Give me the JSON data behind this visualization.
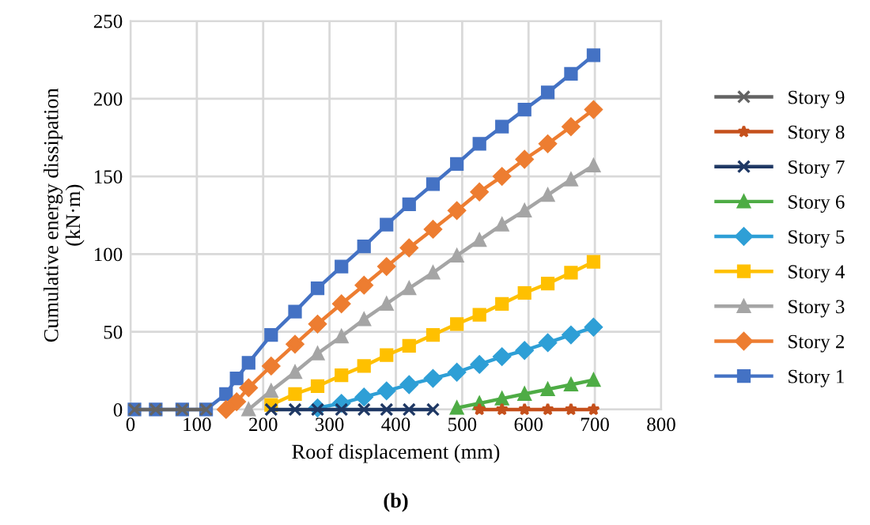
{
  "chart_data": {
    "type": "line",
    "xlabel": "Roof displacement (mm)",
    "ylabel": "Cumulative energy dissipation\n(kN·m)",
    "annotations": [
      "(b)"
    ],
    "x": [
      6,
      38,
      78,
      114,
      144,
      160,
      178,
      212,
      248,
      282,
      318,
      352,
      386,
      420,
      456,
      492,
      526,
      560,
      594,
      629,
      664,
      698
    ],
    "xlim": [
      0,
      800
    ],
    "xticks": [
      0,
      100,
      200,
      300,
      400,
      500,
      600,
      700,
      800
    ],
    "ylim": [
      0,
      250
    ],
    "yticks": [
      0,
      50,
      100,
      150,
      200,
      250
    ],
    "grid": true,
    "legend": "right",
    "series": [
      {
        "name": "Story 9",
        "color": "#636363",
        "marker": "cross",
        "values": [
          0,
          0,
          0,
          0,
          null,
          null,
          null,
          null,
          null,
          null,
          null,
          null,
          null,
          null,
          null,
          null,
          null,
          null,
          null,
          null,
          null,
          null
        ]
      },
      {
        "name": "Story 8",
        "color": "#c5501c",
        "marker": "star",
        "values": [
          null,
          null,
          null,
          null,
          null,
          null,
          null,
          null,
          null,
          null,
          null,
          null,
          null,
          null,
          null,
          null,
          0,
          0,
          0,
          0,
          0,
          0
        ]
      },
      {
        "name": "Story 7",
        "color": "#1f3864",
        "marker": "cross",
        "values": [
          null,
          null,
          null,
          null,
          null,
          null,
          null,
          0,
          0,
          0,
          0,
          0,
          0,
          0,
          0,
          null,
          null,
          null,
          null,
          null,
          null,
          null
        ]
      },
      {
        "name": "Story 6",
        "color": "#4eac45",
        "marker": "triangle",
        "values": [
          null,
          null,
          null,
          null,
          null,
          null,
          null,
          null,
          null,
          null,
          null,
          null,
          null,
          null,
          null,
          1,
          4,
          7,
          10,
          13,
          16,
          19
        ]
      },
      {
        "name": "Story 5",
        "color": "#2e9fd6",
        "marker": "diamond",
        "values": [
          null,
          null,
          null,
          null,
          null,
          null,
          null,
          null,
          null,
          1,
          4,
          8,
          12,
          16,
          20,
          24,
          29,
          34,
          38,
          43,
          48,
          53
        ]
      },
      {
        "name": "Story 4",
        "color": "#ffc000",
        "marker": "square",
        "values": [
          null,
          null,
          null,
          null,
          null,
          null,
          null,
          3,
          10,
          15,
          22,
          28,
          35,
          41,
          48,
          55,
          61,
          68,
          75,
          81,
          88,
          95
        ]
      },
      {
        "name": "Story 3",
        "color": "#a5a5a5",
        "marker": "triangle",
        "values": [
          null,
          null,
          null,
          null,
          null,
          null,
          0,
          12,
          24,
          36,
          47,
          58,
          68,
          78,
          88,
          99,
          109,
          119,
          128,
          138,
          148,
          157
        ]
      },
      {
        "name": "Story 2",
        "color": "#ed7d31",
        "marker": "diamond",
        "values": [
          null,
          null,
          null,
          null,
          0,
          5,
          14,
          28,
          42,
          55,
          68,
          80,
          92,
          104,
          116,
          128,
          140,
          150,
          161,
          171,
          182,
          193
        ]
      },
      {
        "name": "Story 1",
        "color": "#4472c4",
        "marker": "square",
        "values": [
          0,
          0,
          0,
          0,
          10,
          20,
          30,
          48,
          63,
          78,
          92,
          105,
          119,
          132,
          145,
          158,
          171,
          182,
          193,
          204,
          216,
          228
        ]
      }
    ]
  }
}
